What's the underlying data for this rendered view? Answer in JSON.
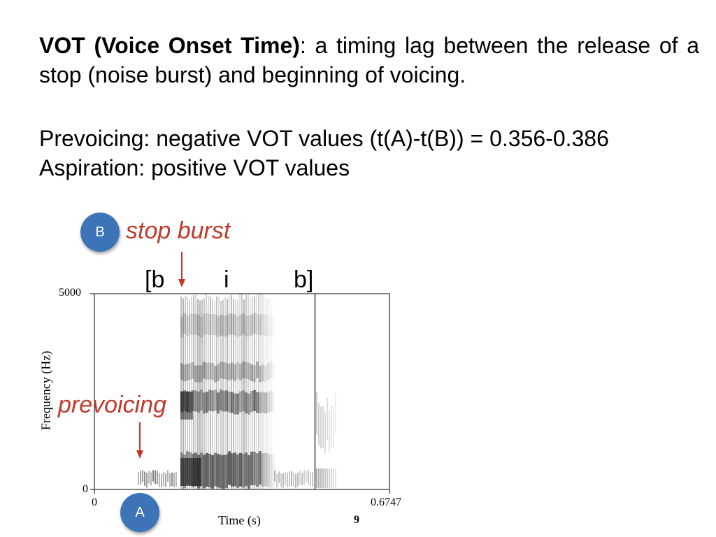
{
  "definition": {
    "term": "VOT (Voice Onset Time)",
    "text": ": a timing lag between the release of a stop (noise burst) and beginning of voicing."
  },
  "prevoicing_line": "Prevoicing: negative VOT values (t(A)-t(B)) = 0.356-0.386",
  "aspiration_line": "Aspiration: positive VOT values",
  "annotations": {
    "badge_b": "B",
    "badge_a": "A",
    "stop_burst": "stop burst",
    "prevoicing": "prevoicing",
    "accent_red": "#c0392b",
    "badge_blue": "#3d73b7"
  },
  "segments": [
    "[b",
    "i",
    "b]"
  ],
  "spectrogram": {
    "y_max_label": "5000",
    "y_min_label": "0",
    "x_min_label": "0",
    "x_max_label": "0.6747",
    "xlabel": "Time (s)",
    "ylabel": "Frequency (Hz)"
  },
  "page_number": "9"
}
